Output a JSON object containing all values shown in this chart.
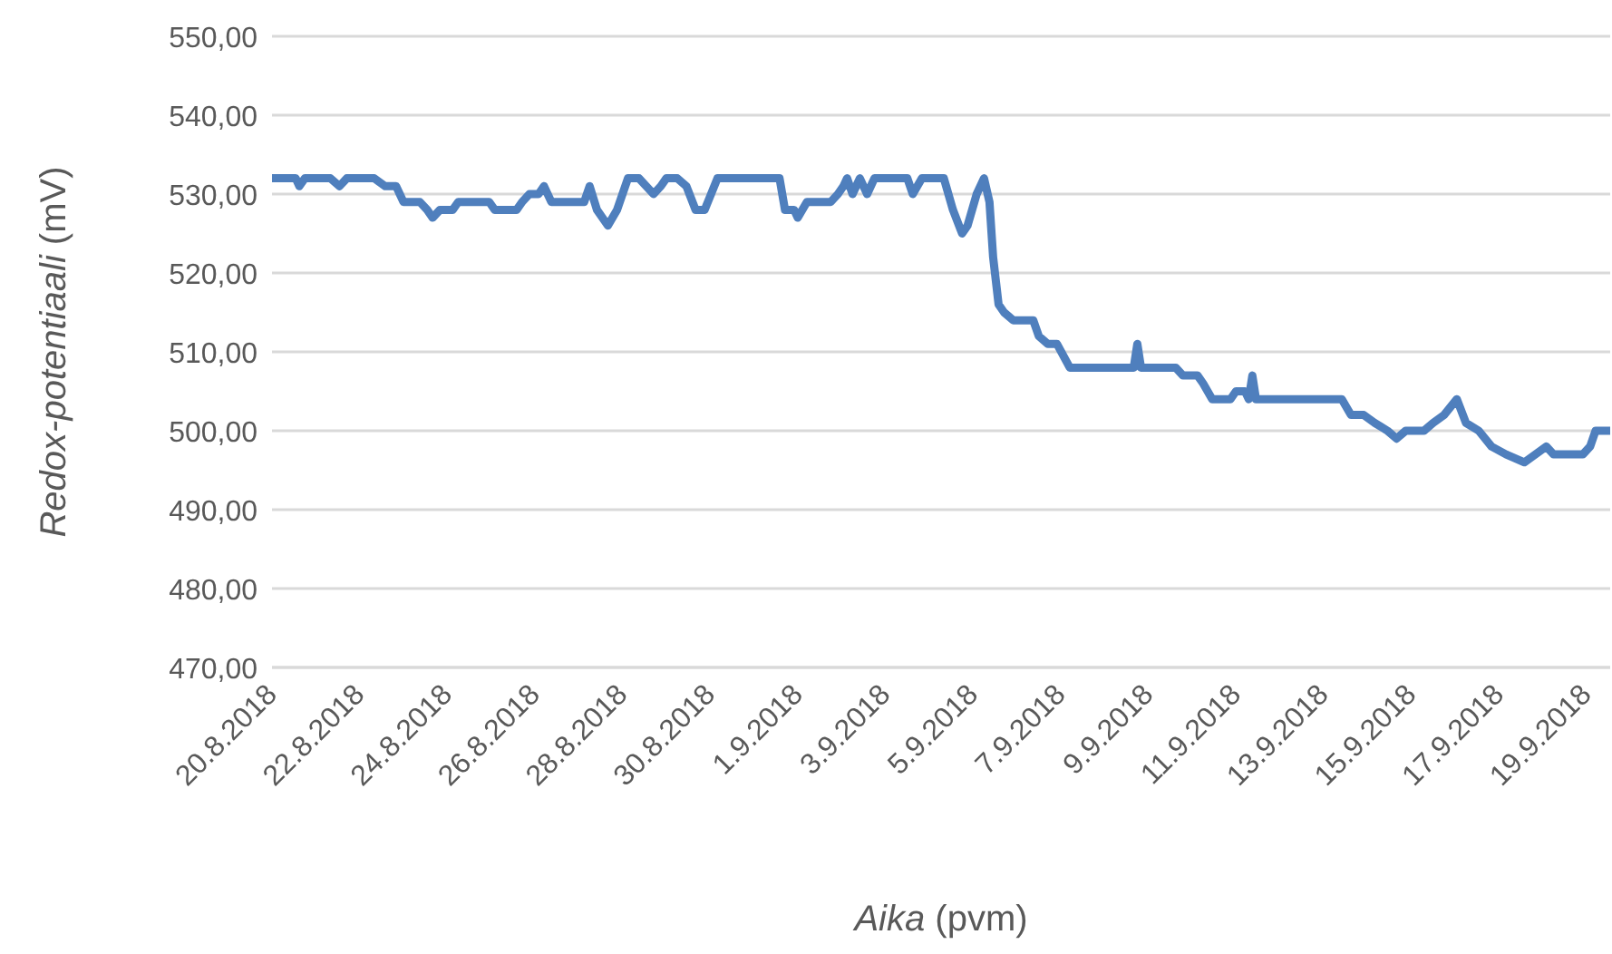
{
  "chart_data": {
    "type": "line",
    "xlabel": "Aika (pvm)",
    "ylabel": "Redox-potentiaali (mV)",
    "x": [
      "2018-08-20T00:00",
      "2018-08-20T13:00",
      "2018-08-20T15:00",
      "2018-08-20T18:00",
      "2018-08-21T08:00",
      "2018-08-21T13:00",
      "2018-08-21T17:00",
      "2018-08-22T08:00",
      "2018-08-22T14:00",
      "2018-08-22T20:00",
      "2018-08-23T00:00",
      "2018-08-23T09:00",
      "2018-08-23T13:00",
      "2018-08-23T16:00",
      "2018-08-23T20:00",
      "2018-08-24T03:00",
      "2018-08-24T06:00",
      "2018-08-24T23:00",
      "2018-08-25T02:00",
      "2018-08-25T14:00",
      "2018-08-25T17:00",
      "2018-08-25T21:00",
      "2018-08-26T02:00",
      "2018-08-26T05:00",
      "2018-08-26T09:00",
      "2018-08-27T03:00",
      "2018-08-27T06:00",
      "2018-08-27T10:00",
      "2018-08-27T16:00",
      "2018-08-27T21:00",
      "2018-08-28T03:00",
      "2018-08-28T09:00",
      "2018-08-28T17:00",
      "2018-08-28T21:00",
      "2018-08-29T00:00",
      "2018-08-29T06:00",
      "2018-08-29T11:00",
      "2018-08-29T16:00",
      "2018-08-29T21:00",
      "2018-08-30T04:00",
      "2018-08-31T14:00",
      "2018-08-31T17:00",
      "2018-08-31T22:00",
      "2018-09-01T00:00",
      "2018-09-01T05:00",
      "2018-09-01T18:00",
      "2018-09-01T22:00",
      "2018-09-02T01:00",
      "2018-09-02T03:00",
      "2018-09-02T06:00",
      "2018-09-02T10:00",
      "2018-09-02T14:00",
      "2018-09-02T18:00",
      "2018-09-03T12:00",
      "2018-09-03T15:00",
      "2018-09-03T20:00",
      "2018-09-04T08:00",
      "2018-09-04T13:00",
      "2018-09-04T18:00",
      "2018-09-04T21:00",
      "2018-09-05T02:00",
      "2018-09-05T06:00",
      "2018-09-05T09:00",
      "2018-09-05T11:00",
      "2018-09-05T14:00",
      "2018-09-05T17:00",
      "2018-09-05T22:00",
      "2018-09-06T09:00",
      "2018-09-06T12:00",
      "2018-09-06T17:00",
      "2018-09-06T22:00",
      "2018-09-07T05:00",
      "2018-09-08T16:00",
      "2018-09-08T18:00",
      "2018-09-08T20:00",
      "2018-09-09T15:00",
      "2018-09-09T19:00",
      "2018-09-10T03:00",
      "2018-09-10T06:00",
      "2018-09-10T11:00",
      "2018-09-10T21:00",
      "2018-09-11T00:00",
      "2018-09-11T05:00",
      "2018-09-11T07:00",
      "2018-09-11T09:00",
      "2018-09-11T11:00",
      "2018-09-13T10:00",
      "2018-09-13T15:00",
      "2018-09-13T22:00",
      "2018-09-14T04:00",
      "2018-09-14T11:00",
      "2018-09-14T16:00",
      "2018-09-14T21:00",
      "2018-09-15T07:00",
      "2018-09-15T12:00",
      "2018-09-15T18:00",
      "2018-09-16T01:00",
      "2018-09-16T06:00",
      "2018-09-16T13:00",
      "2018-09-16T20:00",
      "2018-09-17T04:00",
      "2018-09-17T14:00",
      "2018-09-17T20:00",
      "2018-09-18T02:00",
      "2018-09-18T06:00",
      "2018-09-18T22:00",
      "2018-09-19T02:00",
      "2018-09-19T05:00",
      "2018-09-19T13:00"
    ],
    "series": [
      {
        "color": "#4f7fbd",
        "values": [
          532,
          532,
          531,
          532,
          532,
          531,
          532,
          532,
          531,
          531,
          529,
          529,
          528,
          527,
          528,
          528,
          529,
          529,
          528,
          528,
          529,
          530,
          530,
          531,
          529,
          529,
          531,
          528,
          526,
          528,
          532,
          532,
          530,
          531,
          532,
          532,
          531,
          528,
          528,
          532,
          532,
          528,
          528,
          527,
          529,
          529,
          530,
          531,
          532,
          530,
          532,
          530,
          532,
          532,
          530,
          532,
          532,
          528,
          525,
          526,
          530,
          532,
          529,
          522,
          516,
          515,
          514,
          514,
          512,
          511,
          511,
          508,
          508,
          511,
          508,
          508,
          507,
          507,
          506,
          504,
          504,
          505,
          505,
          504,
          507,
          504,
          504,
          502,
          502,
          501,
          500,
          499,
          500,
          500,
          501,
          502,
          504,
          501,
          500,
          498,
          497,
          496,
          497,
          498,
          497,
          497,
          498,
          500,
          500
        ]
      }
    ],
    "xlim": [
      "2018-08-20T00:00",
      "2018-09-19T13:00"
    ],
    "xticks": [
      {
        "value": "2018-08-20",
        "label": "20.8.2018"
      },
      {
        "value": "2018-08-22",
        "label": "22.8.2018"
      },
      {
        "value": "2018-08-24",
        "label": "24.8.2018"
      },
      {
        "value": "2018-08-26",
        "label": "26.8.2018"
      },
      {
        "value": "2018-08-28",
        "label": "28.8.2018"
      },
      {
        "value": "2018-08-30",
        "label": "30.8.2018"
      },
      {
        "value": "2018-09-01",
        "label": "1.9.2018"
      },
      {
        "value": "2018-09-03",
        "label": "3.9.2018"
      },
      {
        "value": "2018-09-05",
        "label": "5.9.2018"
      },
      {
        "value": "2018-09-07",
        "label": "7.9.2018"
      },
      {
        "value": "2018-09-09",
        "label": "9.9.2018"
      },
      {
        "value": "2018-09-11",
        "label": "11.9.2018"
      },
      {
        "value": "2018-09-13",
        "label": "13.9.2018"
      },
      {
        "value": "2018-09-15",
        "label": "15.9.2018"
      },
      {
        "value": "2018-09-17",
        "label": "17.9.2018"
      },
      {
        "value": "2018-09-19",
        "label": "19.9.2018"
      }
    ],
    "ylim": [
      470,
      550
    ],
    "yticks": [
      {
        "value": 470,
        "label": "470,00"
      },
      {
        "value": 480,
        "label": "480,00"
      },
      {
        "value": 490,
        "label": "490,00"
      },
      {
        "value": 500,
        "label": "500,00"
      },
      {
        "value": 510,
        "label": "510,00"
      },
      {
        "value": 520,
        "label": "520,00"
      },
      {
        "value": 530,
        "label": "530,00"
      },
      {
        "value": 540,
        "label": "540,00"
      },
      {
        "value": 550,
        "label": "550,00"
      }
    ],
    "grid": "y",
    "legend": false,
    "marker": "none",
    "line_style": "solid"
  }
}
